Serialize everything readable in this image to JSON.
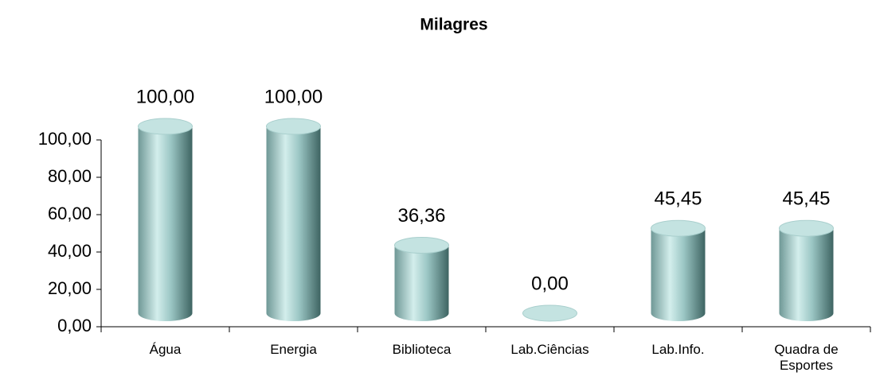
{
  "chart_data": {
    "type": "bar",
    "title": "Milagres",
    "categories": [
      "Água",
      "Energia",
      "Biblioteca",
      "Lab.Ciências",
      "Lab.Info.",
      "Quadra de Esportes"
    ],
    "values": [
      100,
      100,
      36.36,
      0,
      45.45,
      45.45
    ],
    "value_labels": [
      "100,00",
      "100,00",
      "36,36",
      "0,00",
      "45,45",
      "45,45"
    ],
    "color": "#9cc7c5",
    "ylim": [
      0,
      100
    ],
    "yticks": [
      {
        "value": 0,
        "label": "0,00"
      },
      {
        "value": 20,
        "label": "20,00"
      },
      {
        "value": 40,
        "label": "40,00"
      },
      {
        "value": 60,
        "label": "60,00"
      },
      {
        "value": 80,
        "label": "80,00"
      },
      {
        "value": 100,
        "label": "100,00"
      }
    ],
    "grid": false
  }
}
